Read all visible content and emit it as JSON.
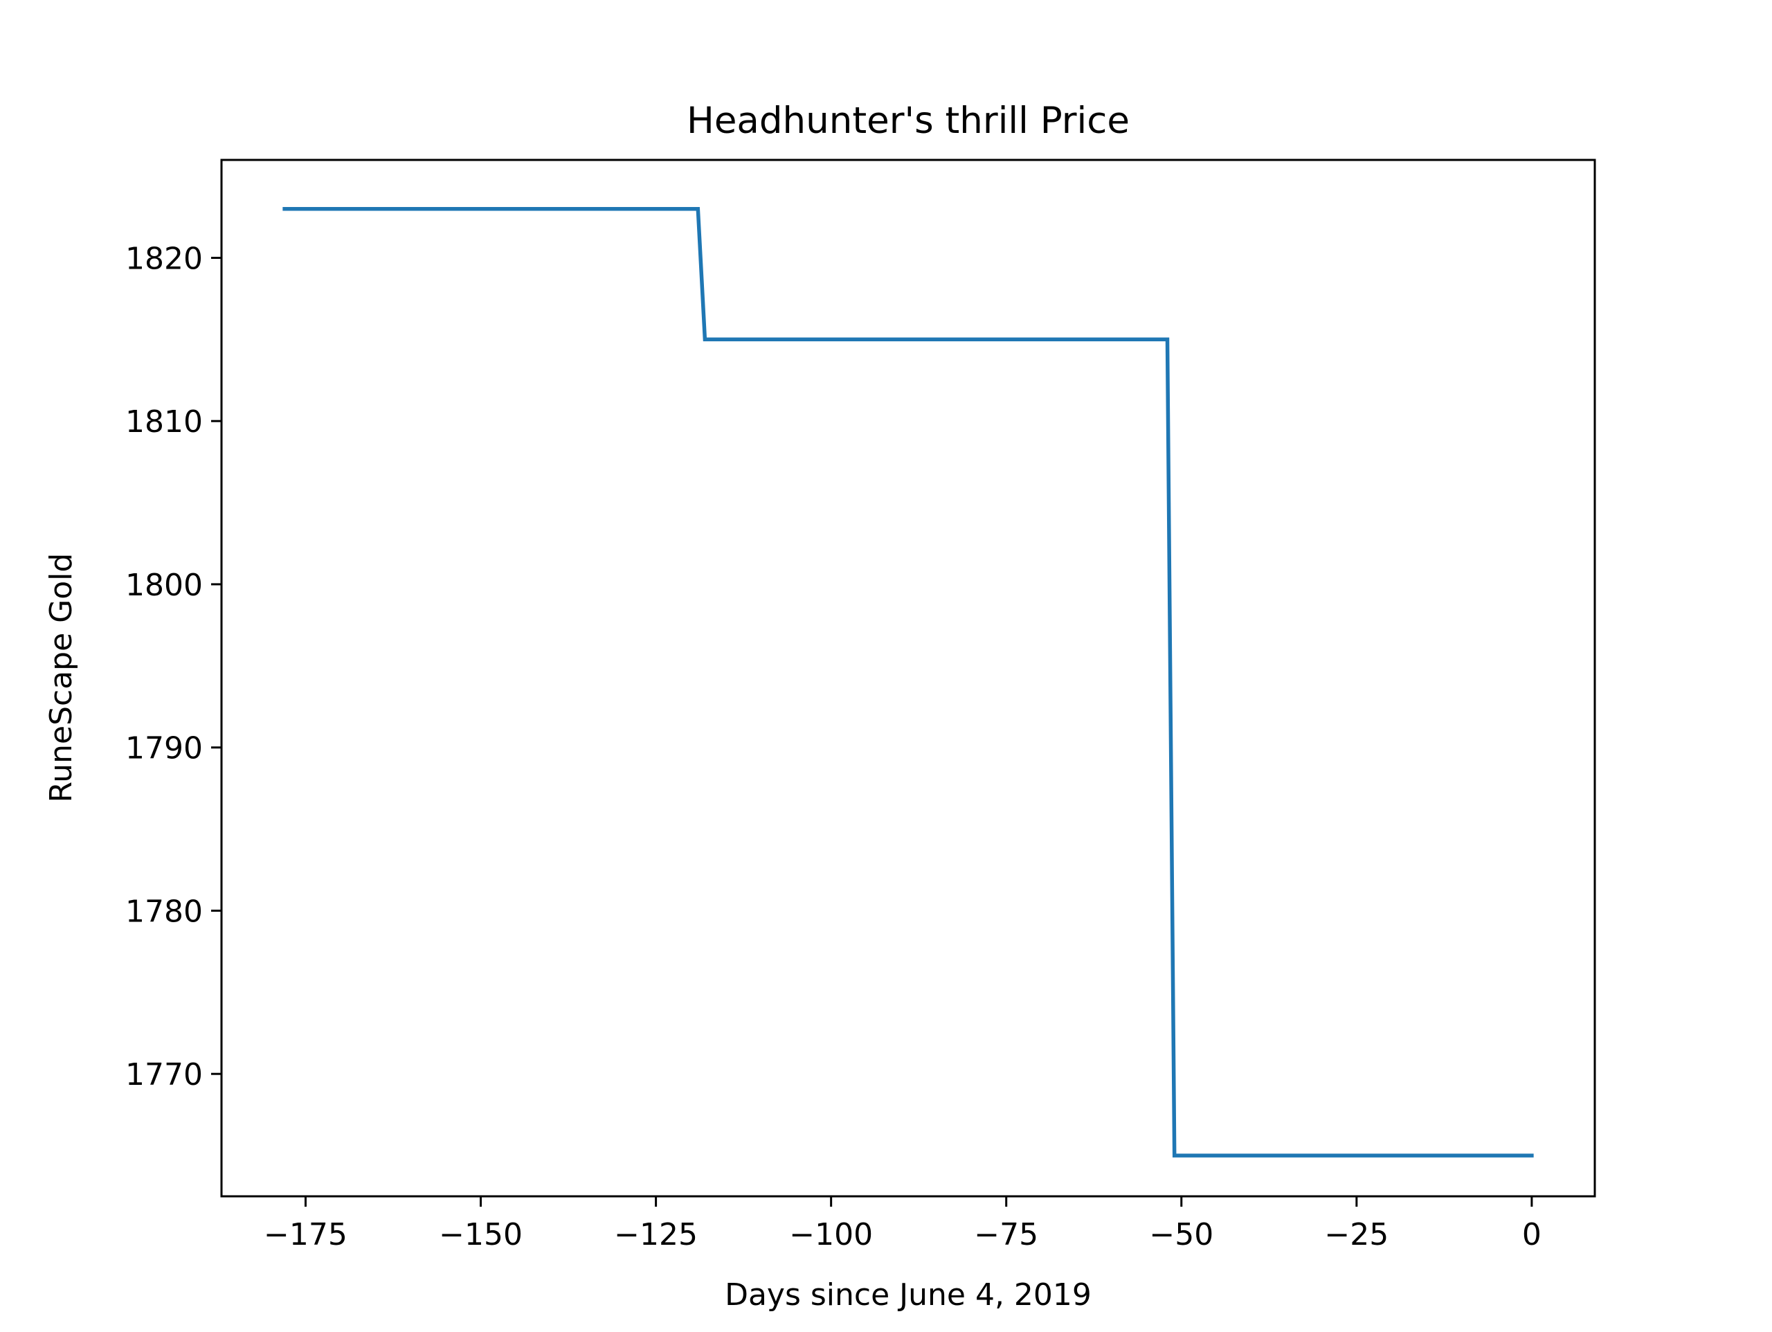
{
  "chart_data": {
    "type": "line",
    "title": "Headhunter's thrill Price",
    "xlabel": "Days since June 4, 2019",
    "ylabel": "RuneScape Gold",
    "xlim": [
      -187,
      9
    ],
    "ylim": [
      1762.5,
      1826.0
    ],
    "xticks": [
      -175,
      -150,
      -125,
      -100,
      -75,
      -50,
      -25,
      0
    ],
    "xtick_labels": [
      "−175",
      "−150",
      "−125",
      "−100",
      "−75",
      "−50",
      "−25",
      "0"
    ],
    "yticks": [
      1770,
      1780,
      1790,
      1800,
      1810,
      1820
    ],
    "ytick_labels": [
      "1770",
      "1780",
      "1790",
      "1800",
      "1810",
      "1820"
    ],
    "grid": false,
    "line_color": "#1f77b4",
    "series": [
      {
        "x": [
          -178,
          -119,
          -118,
          -52,
          -51,
          0
        ],
        "y": [
          1823,
          1823,
          1815,
          1815,
          1765,
          1765
        ]
      }
    ]
  }
}
